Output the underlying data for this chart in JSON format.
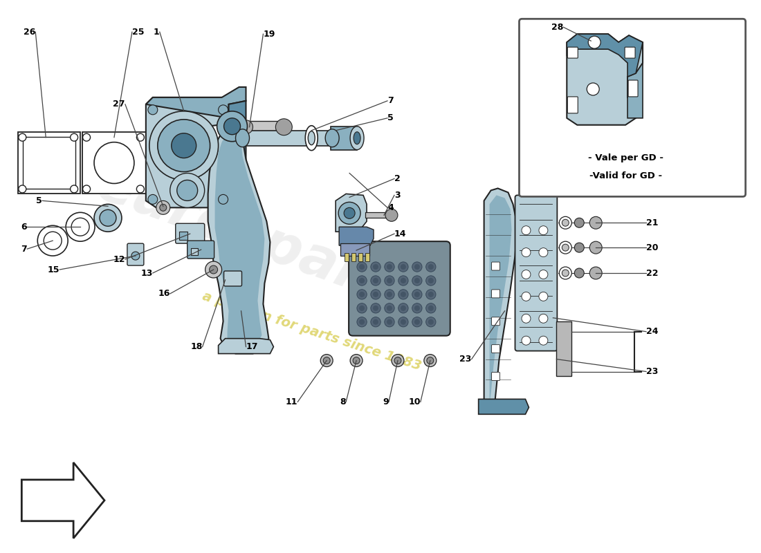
{
  "bg_color": "#ffffff",
  "part_color_light": "#b8cfd8",
  "part_color_mid": "#8ab0c0",
  "part_color_dark": "#6090a8",
  "part_color_darker": "#4a7890",
  "outline_color": "#222222",
  "label_color": "#000000",
  "line_color": "#444444",
  "wm_color1": "#d8d8d8",
  "wm_color2": "#d4c840",
  "inset_note1": "- Vale per GD -",
  "inset_note2": "-Valid for GD -"
}
